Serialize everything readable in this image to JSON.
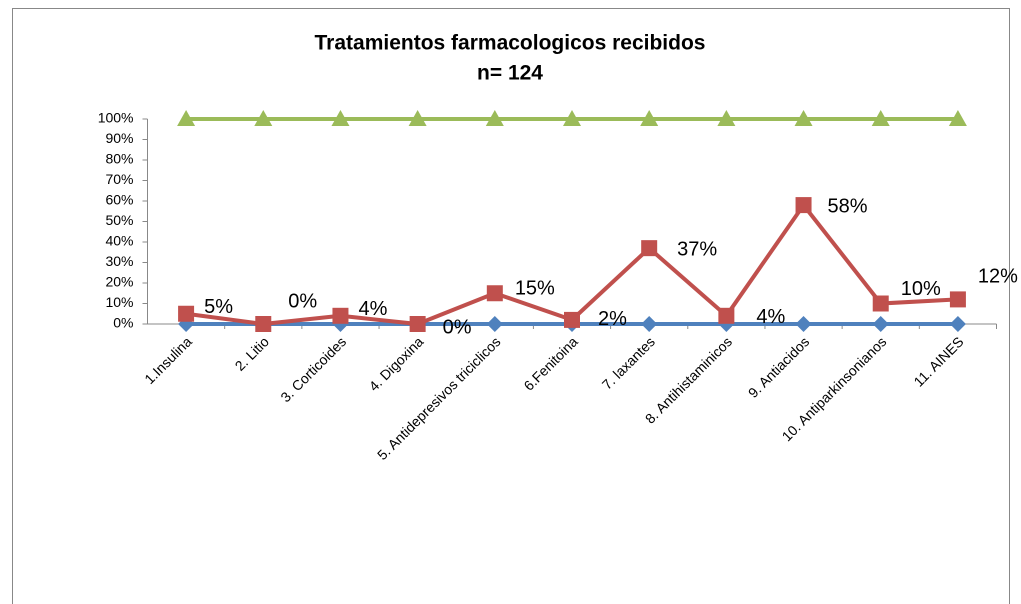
{
  "chart_data": {
    "type": "line",
    "title": "Tratamientos farmacologicos recibidos",
    "subtitle": "n= 124",
    "categories": [
      "1.Insulina",
      "2. Litio",
      "3. Corticoides",
      "4. Digoxina",
      "5. Antidepresivos triciclicos",
      "6.Fenitoina",
      "7. laxantes",
      "8. Antihistaminicos",
      "9. Antiacidos",
      "10. Antiparkinsonianos",
      "11. AINES"
    ],
    "series": [
      {
        "color": "#4f81bd",
        "marker": "diamond",
        "values": [
          0,
          0,
          0,
          0,
          0,
          0,
          0,
          0,
          0,
          0,
          0
        ]
      },
      {
        "color": "#c0504d",
        "marker": "square",
        "values": [
          5,
          0,
          4,
          0,
          15,
          2,
          37,
          4,
          58,
          10,
          12
        ],
        "value_labels": [
          "5%",
          "0%",
          "4%",
          "0%",
          "15%",
          "2%",
          "37%",
          "4%",
          "58%",
          "10%",
          "12%"
        ]
      },
      {
        "color": "#9bbb59",
        "marker": "triangle",
        "values": [
          100,
          100,
          100,
          100,
          100,
          100,
          100,
          100,
          100,
          100,
          100
        ]
      }
    ],
    "ylim": [
      0,
      100
    ],
    "yticks": [
      {
        "value": 0,
        "label": "0%"
      },
      {
        "value": 10,
        "label": "10%"
      },
      {
        "value": 20,
        "label": "20%"
      },
      {
        "value": 30,
        "label": "30%"
      },
      {
        "value": 40,
        "label": "40%"
      },
      {
        "value": 50,
        "label": "50%"
      },
      {
        "value": 60,
        "label": "60%"
      },
      {
        "value": 70,
        "label": "70%"
      },
      {
        "value": 80,
        "label": "80%"
      },
      {
        "value": 90,
        "label": "90%"
      },
      {
        "value": 100,
        "label": "100%"
      }
    ],
    "grid": false
  }
}
